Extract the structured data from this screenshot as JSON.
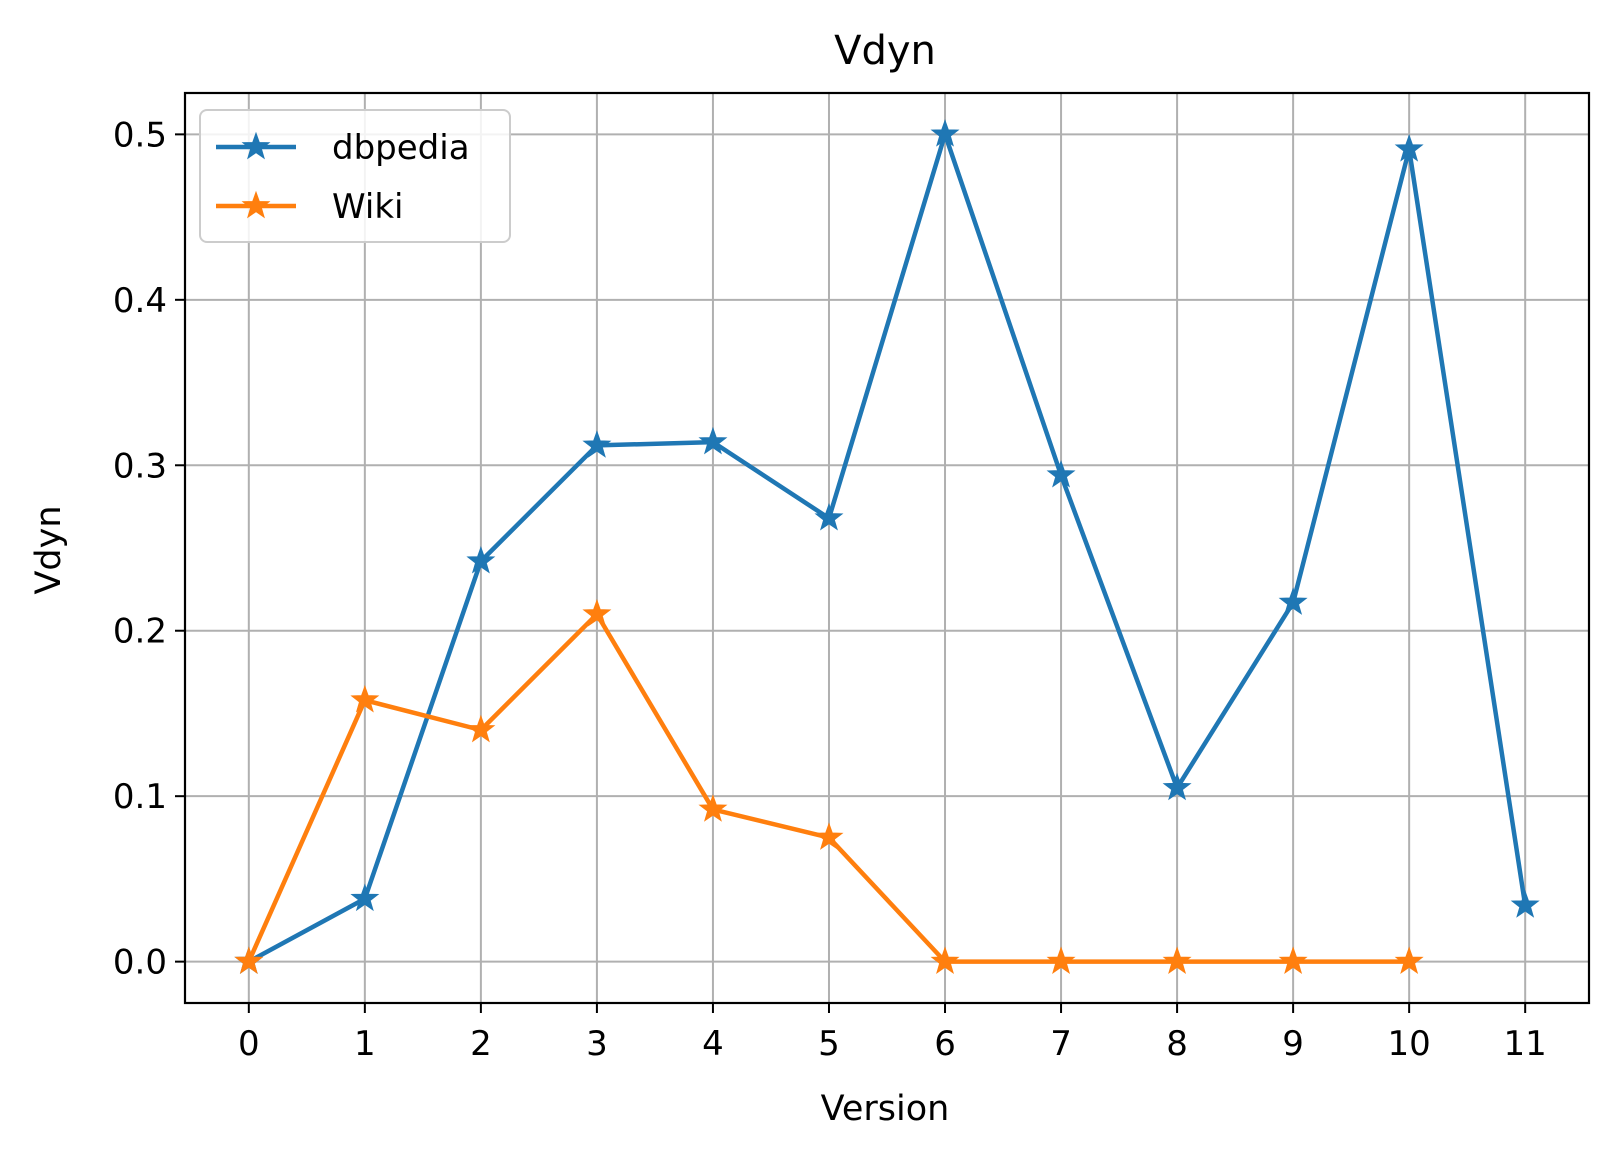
{
  "chart_data": {
    "type": "line",
    "title": "Vdyn",
    "xlabel": "Version",
    "ylabel": "Vdyn",
    "x_ticks": [
      0,
      1,
      2,
      3,
      4,
      5,
      6,
      7,
      8,
      9,
      10,
      11
    ],
    "y_ticks": [
      "0.0",
      "0.1",
      "0.2",
      "0.3",
      "0.4",
      "0.5"
    ],
    "xlim": [
      -0.55,
      11.55
    ],
    "ylim": [
      -0.025,
      0.525
    ],
    "grid": true,
    "marker": "star",
    "legend_position": "upper-left",
    "series": [
      {
        "name": "dbpedia",
        "color": "#1f77b4",
        "x": [
          0,
          1,
          2,
          3,
          4,
          5,
          6,
          7,
          8,
          9,
          10,
          11
        ],
        "values": [
          0.0,
          0.038,
          0.242,
          0.312,
          0.314,
          0.268,
          0.5,
          0.294,
          0.105,
          0.217,
          0.491,
          0.034
        ]
      },
      {
        "name": "Wiki",
        "color": "#ff7f0e",
        "x": [
          0,
          1,
          2,
          3,
          4,
          5,
          6,
          7,
          8,
          9,
          10
        ],
        "values": [
          0.0,
          0.158,
          0.14,
          0.21,
          0.092,
          0.075,
          0.0,
          0.0,
          0.0,
          0.0,
          0.0
        ]
      }
    ]
  }
}
